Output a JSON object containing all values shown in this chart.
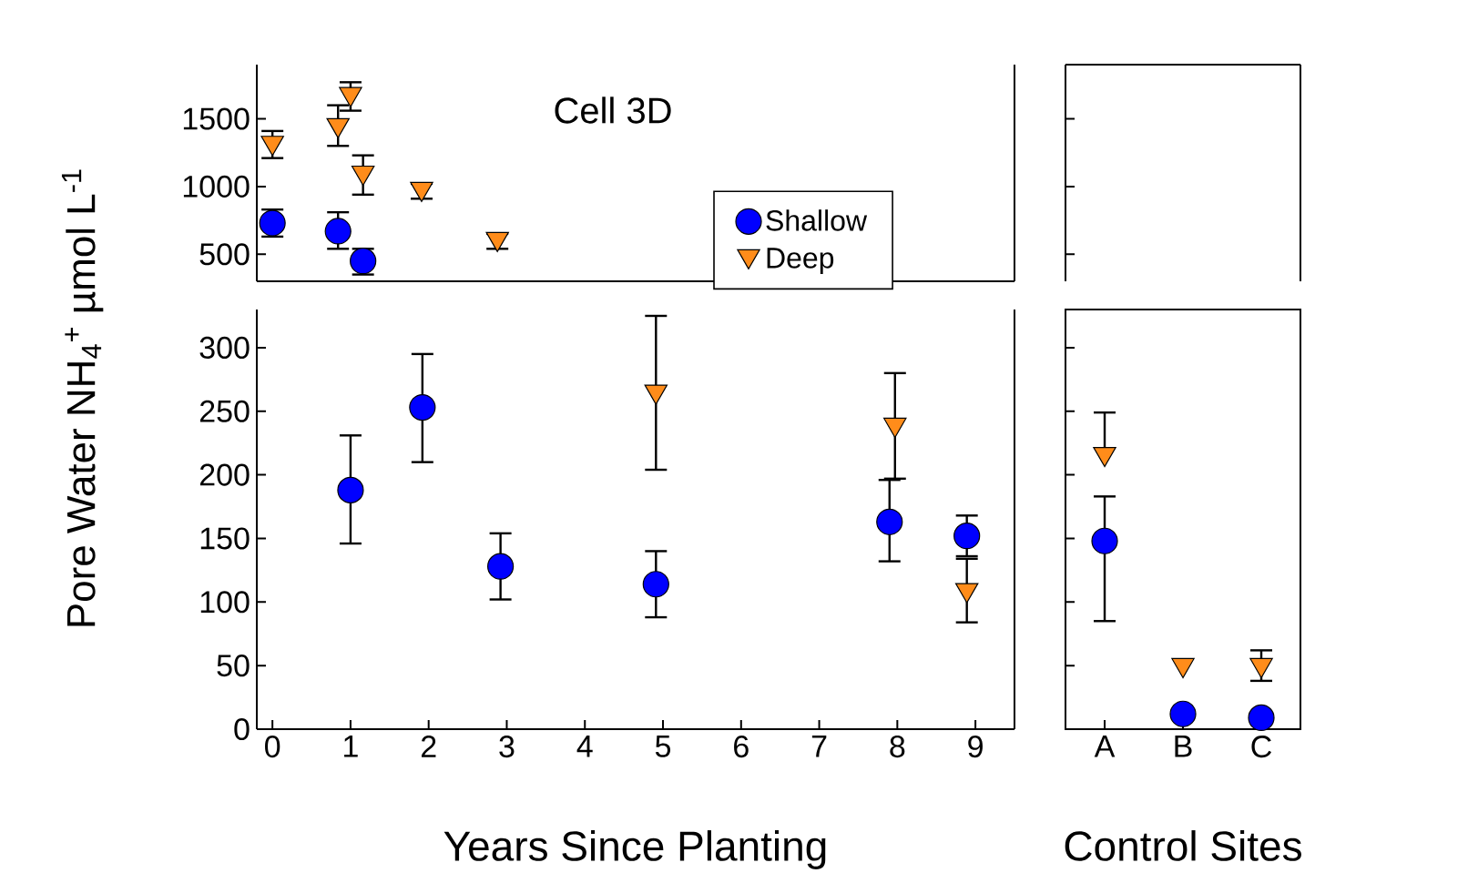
{
  "chart_data": [
    {
      "type": "scatter",
      "annotations": [
        "Cell 3D"
      ],
      "ylabel": "Pore Water NH$_{4}$$^{+}$  µmol L$^{-1}$",
      "xlim": [
        -0.2,
        9.5
      ],
      "ylim": [
        300,
        1900
      ],
      "yticks": [
        500,
        1000,
        1500
      ],
      "tick_labels": "y",
      "legend": "right",
      "series": [
        {
          "name": "Shallow",
          "color": "#0000ff",
          "marker": "circle",
          "x": [
            0,
            0.84,
            1.16
          ],
          "values": [
            730,
            670,
            450
          ],
          "errors": [
            [
              630,
              830
            ],
            [
              540,
              810
            ],
            [
              350,
              540
            ]
          ]
        },
        {
          "name": "Deep",
          "color": "#ff8c1a",
          "marker": "triangle",
          "x": [
            0,
            0.84,
            1.0,
            1.16,
            1.91,
            2.88
          ],
          "values": [
            1300,
            1430,
            1660,
            1080,
            960,
            590
          ],
          "errors": [
            [
              1210,
              1410
            ],
            [
              1300,
              1600
            ],
            [
              1560,
              1770
            ],
            [
              940,
              1230
            ],
            [
              910,
              1020
            ],
            [
              540,
              650
            ]
          ]
        }
      ]
    },
    {
      "type": "scatter",
      "xlabel": "Years Since Planting",
      "xlim": [
        -0.2,
        9.5
      ],
      "xticks": [
        0,
        1,
        2,
        3,
        4,
        5,
        6,
        7,
        8,
        9
      ],
      "ylim": [
        0,
        330
      ],
      "yticks": [
        0,
        50,
        100,
        150,
        200,
        250,
        300
      ],
      "series": [
        {
          "color": "#0000ff",
          "marker": "circle",
          "x": [
            1.0,
            1.92,
            2.92,
            4.91,
            7.9,
            8.89
          ],
          "values": [
            188,
            253,
            128,
            114,
            163,
            152
          ],
          "errors": [
            [
              146,
              231
            ],
            [
              210,
              295
            ],
            [
              102,
              154
            ],
            [
              88,
              140
            ],
            [
              132,
              196
            ],
            [
              136,
              168
            ]
          ]
        },
        {
          "color": "#ff8c1a",
          "marker": "triangle",
          "x": [
            4.91,
            7.97,
            8.89
          ],
          "values": [
            263,
            237,
            107
          ],
          "errors": [
            [
              204,
              325
            ],
            [
              197,
              280
            ],
            [
              84,
              134
            ]
          ]
        }
      ]
    },
    {
      "type": "other"
    },
    {
      "type": "scatter",
      "xlabel": "Control Sites",
      "categories": [
        "A",
        "B",
        "C"
      ],
      "ylim": [
        0,
        330
      ],
      "yticks": [
        {
          "value": 50,
          "label": null
        },
        {
          "value": 100,
          "label": null
        },
        {
          "value": 150,
          "label": null
        },
        {
          "value": 200,
          "label": null
        },
        {
          "value": 250,
          "label": null
        },
        {
          "value": 300,
          "label": null
        }
      ],
      "tick_labels": "x",
      "series": [
        {
          "color": "#0000ff",
          "marker": "circle",
          "values": [
            148,
            12,
            9
          ],
          "errors": [
            [
              85,
              183
            ],
            null,
            null
          ]
        },
        {
          "color": "#ff8c1a",
          "marker": "triangle",
          "values": [
            214,
            48,
            48
          ],
          "errors": [
            [
              214,
              249
            ],
            null,
            [
              38,
              62
            ]
          ]
        }
      ]
    }
  ]
}
